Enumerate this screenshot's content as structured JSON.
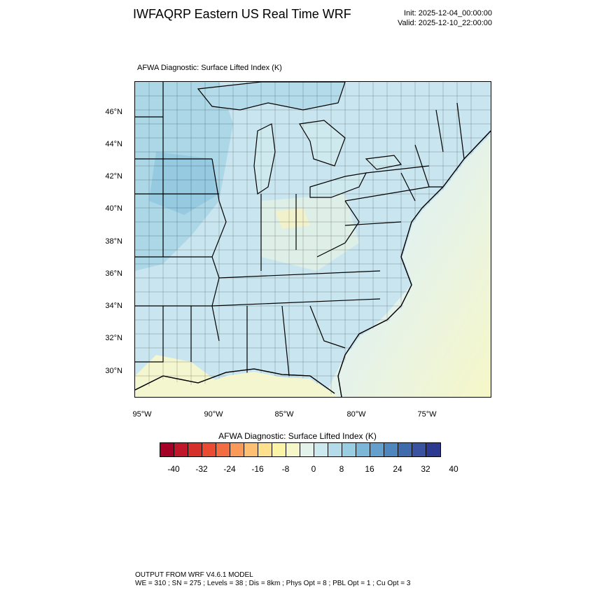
{
  "header": {
    "title": "IWFAQRP Eastern US Real Time WRF",
    "init": "Init: 2025-12-04_00:00:00",
    "valid": "Valid: 2025-12-10_22:00:00"
  },
  "field_label": "AFWA Diagnostic: Surface Lifted Index   (K)",
  "map": {
    "lat_ticks": [
      "46°N",
      "44°N",
      "42°N",
      "40°N",
      "38°N",
      "36°N",
      "34°N",
      "32°N",
      "30°N"
    ],
    "lon_ticks": [
      "95°W",
      "90°W",
      "85°W",
      "80°W",
      "75°W"
    ],
    "colors": {
      "background_field": "#d3ecf3",
      "land_field": "#c6e2ef",
      "water": "#b3dbea",
      "warm_field": "#f6f7c8",
      "neutral_field": "#e4f2ec",
      "cool_field": "#98cde2",
      "boundaries": "#000000"
    }
  },
  "colorbar": {
    "title": "AFWA Diagnostic: Surface Lifted Index  (K)",
    "labels": [
      "-40",
      "-32",
      "-24",
      "-16",
      "-8",
      "0",
      "8",
      "16",
      "24",
      "32",
      "40"
    ],
    "colors": [
      "#a50026",
      "#c0172a",
      "#d6302a",
      "#e94b33",
      "#f36d43",
      "#f99a5b",
      "#fdbf72",
      "#fde08e",
      "#fbf3a6",
      "#f6f7c8",
      "#e4f2ec",
      "#cde9f0",
      "#b3dbea",
      "#98cde2",
      "#7db7d8",
      "#659fcb",
      "#4f86bd",
      "#3f6bac",
      "#3a52a0",
      "#2d3a8f"
    ]
  },
  "footer": {
    "line1": "OUTPUT FROM WRF V4.6.1 MODEL",
    "line2": "WE = 310 ; SN = 275 ; Levels = 38 ; Dis = 8km ; Phys Opt = 8 ; PBL Opt = 1 ; Cu Opt = 3"
  }
}
